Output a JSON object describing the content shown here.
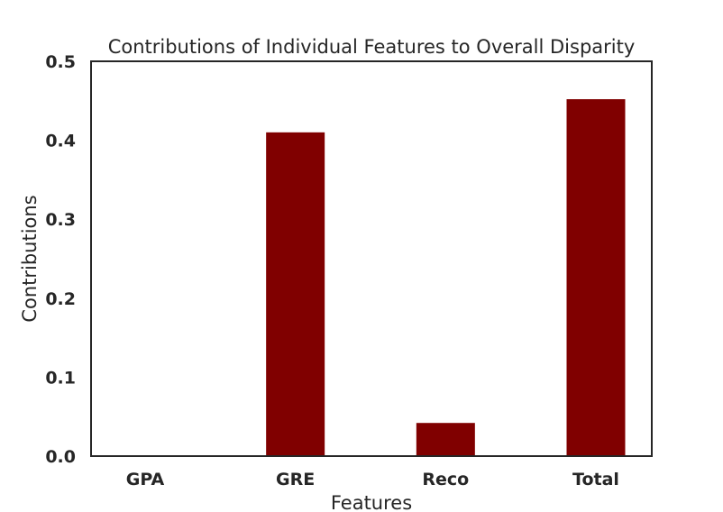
{
  "chart_data": {
    "type": "bar",
    "title": "Contributions of Individual Features to Overall Disparity",
    "xlabel": "Features",
    "ylabel": "Contributions",
    "categories": [
      "GPA",
      "GRE",
      "Reco",
      "Total"
    ],
    "values": [
      0.0,
      0.41,
      0.042,
      0.452
    ],
    "ylim": [
      0,
      0.5
    ],
    "yticks": [
      "0.0",
      "0.1",
      "0.2",
      "0.3",
      "0.4",
      "0.5"
    ],
    "bar_color": "#800000",
    "grid": false,
    "legend": "none"
  }
}
